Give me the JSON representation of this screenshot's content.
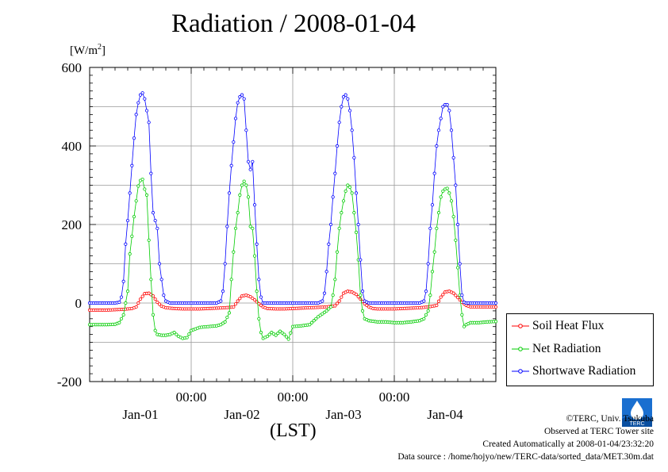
{
  "title": "Radiation / 2008-01-04",
  "y_unit": {
    "base": "[W/m",
    "sup": "2",
    "end": "]"
  },
  "x_label": "(LST)",
  "legend": {
    "items": [
      {
        "label": "Soil Heat Flux",
        "color": "#ff0000"
      },
      {
        "label": "Net Radiation",
        "color": "#00cc00"
      },
      {
        "label": "Shortwave Radiation",
        "color": "#0000ff"
      }
    ]
  },
  "credits": {
    "copyright": "©TERC, Univ. Tsukuba",
    "site": "Observed at TERC Tower site",
    "created": "Created Automatically at 2008-01-04/23:32:20",
    "source": "Data source : /home/hojyo/new/TERC-data/sorted_data/MET.30m.dat"
  },
  "logo_text": "TERC",
  "chart_data": {
    "type": "line",
    "title": "Radiation / 2008-01-04",
    "xlabel": "(LST)",
    "ylabel": "[W/m2]",
    "ylim": [
      -200,
      600
    ],
    "xlim_hours": [
      0,
      96
    ],
    "grid": true,
    "legend_position": "right-bottom outside",
    "y_ticks": [
      "600",
      "400",
      "200",
      "0",
      "-200"
    ],
    "x_time_ticks": [
      "00:00",
      "00:00",
      "00:00"
    ],
    "x_day_labels": [
      "Jan-01",
      "Jan-02",
      "Jan-03",
      "Jan-04"
    ],
    "series": [
      {
        "name": "Soil Heat Flux",
        "color": "#ff0000",
        "points": [
          [
            0,
            -18
          ],
          [
            2,
            -18
          ],
          [
            4,
            -18
          ],
          [
            6,
            -17
          ],
          [
            8,
            -16
          ],
          [
            10,
            -14
          ],
          [
            11,
            -10
          ],
          [
            12,
            10
          ],
          [
            13,
            24
          ],
          [
            14,
            25
          ],
          [
            15,
            18
          ],
          [
            16,
            2
          ],
          [
            17,
            -8
          ],
          [
            18,
            -12
          ],
          [
            20,
            -14
          ],
          [
            22,
            -15
          ],
          [
            24,
            -15
          ],
          [
            26,
            -15
          ],
          [
            28,
            -14
          ],
          [
            30,
            -13
          ],
          [
            32,
            -12
          ],
          [
            34,
            -10
          ],
          [
            35,
            5
          ],
          [
            36,
            18
          ],
          [
            37,
            20
          ],
          [
            38,
            16
          ],
          [
            39,
            8
          ],
          [
            40,
            -2
          ],
          [
            41,
            -10
          ],
          [
            42,
            -14
          ],
          [
            44,
            -15
          ],
          [
            46,
            -15
          ],
          [
            48,
            -14
          ],
          [
            50,
            -13
          ],
          [
            52,
            -12
          ],
          [
            54,
            -11
          ],
          [
            56,
            -10
          ],
          [
            58,
            -7
          ],
          [
            59,
            5
          ],
          [
            60,
            25
          ],
          [
            61,
            30
          ],
          [
            62,
            28
          ],
          [
            63,
            22
          ],
          [
            64,
            10
          ],
          [
            65,
            -2
          ],
          [
            66,
            -10
          ],
          [
            67,
            -14
          ],
          [
            68,
            -15
          ],
          [
            70,
            -15
          ],
          [
            72,
            -15
          ],
          [
            74,
            -14
          ],
          [
            76,
            -13
          ],
          [
            78,
            -12
          ],
          [
            80,
            -10
          ],
          [
            82,
            -6
          ],
          [
            83,
            15
          ],
          [
            84,
            28
          ],
          [
            85,
            30
          ],
          [
            86,
            25
          ],
          [
            87,
            14
          ],
          [
            88,
            2
          ],
          [
            89,
            -6
          ],
          [
            90,
            -10
          ],
          [
            92,
            -10
          ],
          [
            94,
            -10
          ],
          [
            96,
            -10
          ]
        ]
      },
      {
        "name": "Net Radiation",
        "color": "#00cc00",
        "points": [
          [
            0,
            -55
          ],
          [
            2,
            -55
          ],
          [
            4,
            -55
          ],
          [
            6,
            -54
          ],
          [
            7,
            -50
          ],
          [
            8,
            -30
          ],
          [
            9,
            30
          ],
          [
            9.5,
            125
          ],
          [
            10,
            170
          ],
          [
            10.5,
            220
          ],
          [
            11,
            260
          ],
          [
            11.5,
            298
          ],
          [
            12,
            312
          ],
          [
            12.5,
            315
          ],
          [
            13,
            290
          ],
          [
            13.5,
            275
          ],
          [
            14,
            160
          ],
          [
            14.5,
            60
          ],
          [
            15,
            -30
          ],
          [
            15.5,
            -70
          ],
          [
            16,
            -80
          ],
          [
            17,
            -82
          ],
          [
            18,
            -82
          ],
          [
            19,
            -80
          ],
          [
            20,
            -75
          ],
          [
            21,
            -85
          ],
          [
            22,
            -90
          ],
          [
            23,
            -88
          ],
          [
            24,
            -70
          ],
          [
            26,
            -62
          ],
          [
            28,
            -60
          ],
          [
            30,
            -58
          ],
          [
            31,
            -55
          ],
          [
            32,
            -48
          ],
          [
            33,
            -25
          ],
          [
            33.5,
            60
          ],
          [
            34,
            130
          ],
          [
            34.5,
            190
          ],
          [
            35,
            230
          ],
          [
            35.5,
            275
          ],
          [
            36,
            300
          ],
          [
            36.5,
            310
          ],
          [
            37,
            300
          ],
          [
            37.5,
            270
          ],
          [
            38,
            195
          ],
          [
            38.5,
            190
          ],
          [
            39,
            120
          ],
          [
            39.5,
            30
          ],
          [
            40,
            -40
          ],
          [
            40.5,
            -75
          ],
          [
            41,
            -90
          ],
          [
            42,
            -85
          ],
          [
            43,
            -75
          ],
          [
            44,
            -82
          ],
          [
            45,
            -72
          ],
          [
            46,
            -80
          ],
          [
            47,
            -92
          ],
          [
            48,
            -60
          ],
          [
            50,
            -58
          ],
          [
            52,
            -55
          ],
          [
            54,
            -35
          ],
          [
            56,
            -20
          ],
          [
            57,
            -10
          ],
          [
            57.5,
            20
          ],
          [
            58,
            60
          ],
          [
            58.5,
            130
          ],
          [
            59,
            190
          ],
          [
            59.5,
            230
          ],
          [
            60,
            260
          ],
          [
            60.5,
            285
          ],
          [
            61,
            300
          ],
          [
            61.5,
            295
          ],
          [
            62,
            280
          ],
          [
            62.5,
            230
          ],
          [
            63,
            180
          ],
          [
            63.5,
            110
          ],
          [
            64,
            20
          ],
          [
            64.5,
            -20
          ],
          [
            65,
            -40
          ],
          [
            66,
            -45
          ],
          [
            68,
            -48
          ],
          [
            70,
            -48
          ],
          [
            72,
            -50
          ],
          [
            74,
            -50
          ],
          [
            76,
            -48
          ],
          [
            78,
            -45
          ],
          [
            79,
            -40
          ],
          [
            80,
            -20
          ],
          [
            80.5,
            20
          ],
          [
            81,
            80
          ],
          [
            81.5,
            130
          ],
          [
            82,
            190
          ],
          [
            82.5,
            230
          ],
          [
            83,
            270
          ],
          [
            83.5,
            285
          ],
          [
            84,
            290
          ],
          [
            84.5,
            292
          ],
          [
            85,
            280
          ],
          [
            85.5,
            260
          ],
          [
            86,
            220
          ],
          [
            86.5,
            160
          ],
          [
            87,
            90
          ],
          [
            87.5,
            20
          ],
          [
            88,
            -30
          ],
          [
            88.5,
            -60
          ],
          [
            89,
            -55
          ],
          [
            90,
            -50
          ],
          [
            92,
            -50
          ],
          [
            94,
            -48
          ],
          [
            96,
            -47
          ]
        ]
      },
      {
        "name": "Shortwave Radiation",
        "color": "#0000ff",
        "points": [
          [
            0,
            0
          ],
          [
            2,
            0
          ],
          [
            4,
            0
          ],
          [
            6,
            0
          ],
          [
            7,
            2
          ],
          [
            7.5,
            15
          ],
          [
            8,
            55
          ],
          [
            8.5,
            150
          ],
          [
            9,
            210
          ],
          [
            9.5,
            280
          ],
          [
            10,
            350
          ],
          [
            10.5,
            420
          ],
          [
            11,
            480
          ],
          [
            11.5,
            510
          ],
          [
            12,
            530
          ],
          [
            12.5,
            535
          ],
          [
            13,
            520
          ],
          [
            13.5,
            490
          ],
          [
            14,
            460
          ],
          [
            14.5,
            330
          ],
          [
            15,
            230
          ],
          [
            15.5,
            210
          ],
          [
            16,
            190
          ],
          [
            16.5,
            100
          ],
          [
            17,
            60
          ],
          [
            17.5,
            20
          ],
          [
            18,
            5
          ],
          [
            19,
            0
          ],
          [
            20,
            0
          ],
          [
            22,
            0
          ],
          [
            24,
            0
          ],
          [
            26,
            0
          ],
          [
            28,
            0
          ],
          [
            30,
            0
          ],
          [
            31,
            5
          ],
          [
            31.5,
            30
          ],
          [
            32,
            100
          ],
          [
            32.5,
            195
          ],
          [
            33,
            280
          ],
          [
            33.5,
            350
          ],
          [
            34,
            410
          ],
          [
            34.5,
            470
          ],
          [
            35,
            510
          ],
          [
            35.5,
            525
          ],
          [
            36,
            530
          ],
          [
            36.5,
            520
          ],
          [
            37,
            440
          ],
          [
            37.5,
            360
          ],
          [
            38,
            340
          ],
          [
            38.5,
            360
          ],
          [
            39,
            250
          ],
          [
            39.5,
            150
          ],
          [
            40,
            60
          ],
          [
            40.5,
            15
          ],
          [
            41,
            0
          ],
          [
            42,
            0
          ],
          [
            44,
            0
          ],
          [
            46,
            0
          ],
          [
            48,
            0
          ],
          [
            50,
            0
          ],
          [
            52,
            0
          ],
          [
            54,
            0
          ],
          [
            55,
            5
          ],
          [
            55.5,
            25
          ],
          [
            56,
            80
          ],
          [
            56.5,
            150
          ],
          [
            57,
            200
          ],
          [
            57.5,
            270
          ],
          [
            58,
            330
          ],
          [
            58.5,
            400
          ],
          [
            59,
            460
          ],
          [
            59.5,
            500
          ],
          [
            60,
            525
          ],
          [
            60.5,
            530
          ],
          [
            61,
            520
          ],
          [
            61.5,
            490
          ],
          [
            62,
            440
          ],
          [
            62.5,
            370
          ],
          [
            63,
            280
          ],
          [
            63.5,
            200
          ],
          [
            64,
            110
          ],
          [
            64.5,
            30
          ],
          [
            65,
            5
          ],
          [
            66,
            0
          ],
          [
            68,
            0
          ],
          [
            70,
            0
          ],
          [
            72,
            0
          ],
          [
            74,
            0
          ],
          [
            76,
            0
          ],
          [
            78,
            0
          ],
          [
            79,
            5
          ],
          [
            79.5,
            30
          ],
          [
            80,
            100
          ],
          [
            80.5,
            190
          ],
          [
            81,
            250
          ],
          [
            81.5,
            330
          ],
          [
            82,
            400
          ],
          [
            82.5,
            440
          ],
          [
            83,
            470
          ],
          [
            83.5,
            500
          ],
          [
            84,
            505
          ],
          [
            84.5,
            505
          ],
          [
            85,
            490
          ],
          [
            85.5,
            440
          ],
          [
            86,
            370
          ],
          [
            86.5,
            300
          ],
          [
            87,
            200
          ],
          [
            87.5,
            100
          ],
          [
            88,
            20
          ],
          [
            88.5,
            2
          ],
          [
            89,
            0
          ],
          [
            92,
            0
          ],
          [
            94,
            0
          ],
          [
            96,
            0
          ]
        ]
      }
    ]
  }
}
